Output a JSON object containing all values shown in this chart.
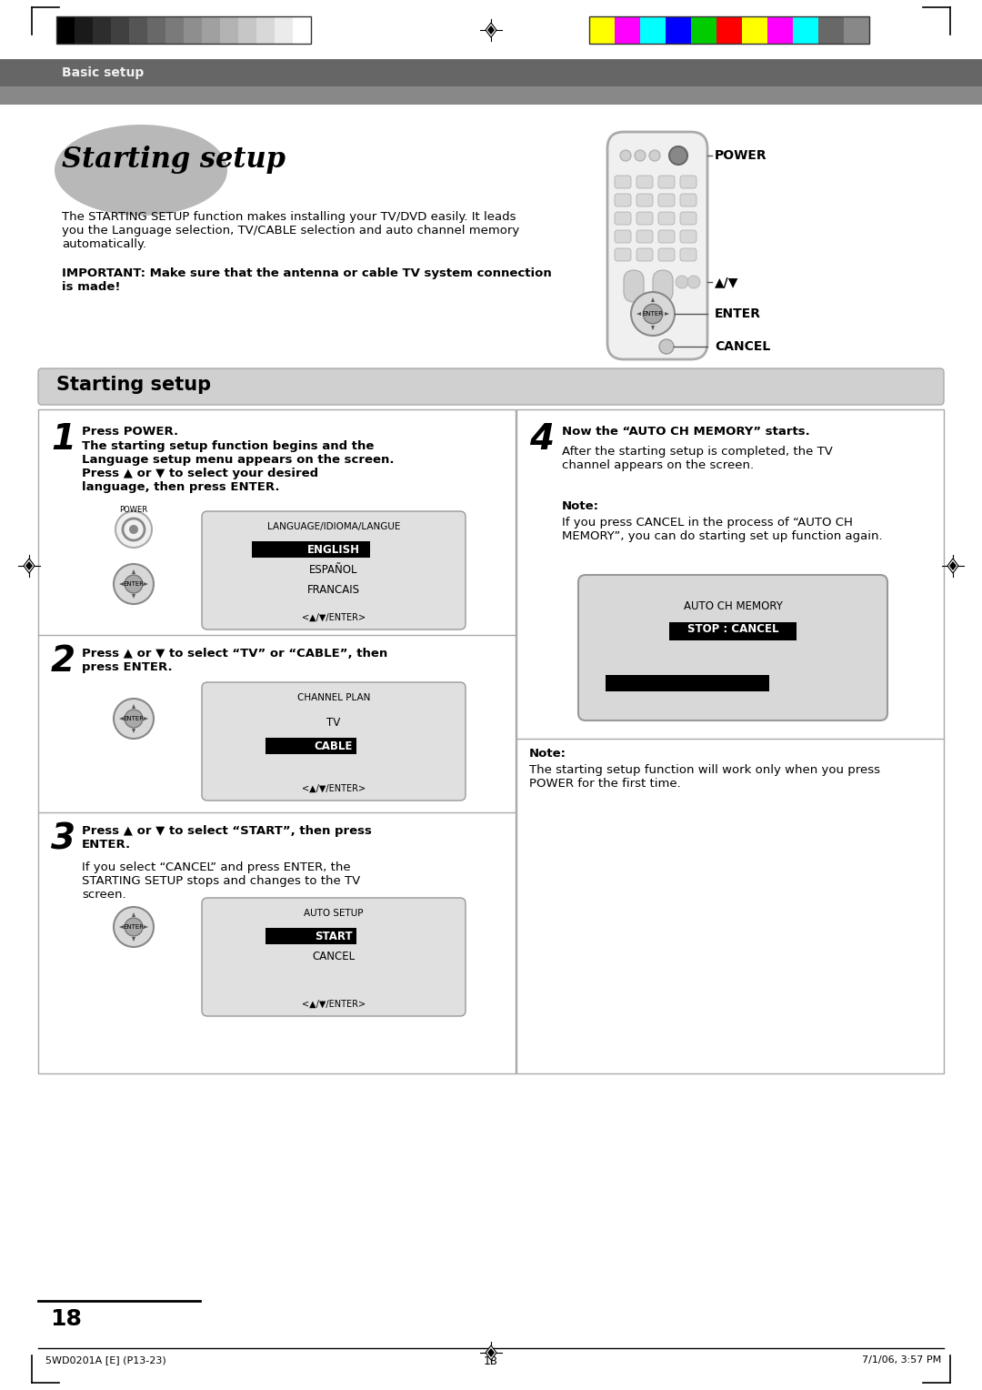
{
  "page_bg": "#ffffff",
  "header_bar_color": "#787878",
  "header_text": "Basic setup",
  "intro_title": "Starting setup",
  "intro_body1": "The STARTING SETUP function makes installing your TV/DVD easily. It leads\nyou the Language selection, TV/CABLE selection and auto channel memory\nautomatically.",
  "intro_bold": "IMPORTANT: Make sure that the antenna or cable TV system connection\nis made!",
  "section_title": "Starting setup",
  "step1_num": "1",
  "step1_title": "Press POWER.",
  "step1_bold": "The starting setup function begins and the\nLanguage setup menu appears on the screen.\nPress ▲ or ▼ to select your desired\nlanguage, then press ENTER.",
  "step1_screen_title": "LANGUAGE/IDIOMA/LANGUE",
  "step1_screen_items": [
    "ENGLISH",
    "ESPAÑOL",
    "FRANCAIS"
  ],
  "step1_screen_selected": 0,
  "step1_screen_nav": "<▲/▼/ENTER>",
  "step2_num": "2",
  "step2_bold": "Press ▲ or ▼ to select “TV” or “CABLE”, then\npress ENTER.",
  "step2_screen_title": "CHANNEL PLAN",
  "step2_screen_items": [
    "TV",
    "CABLE"
  ],
  "step2_screen_selected": 1,
  "step2_screen_nav": "<▲/▼/ENTER>",
  "step3_num": "3",
  "step3_bold": "Press ▲ or ▼ to select “START”, then press\nENTER.",
  "step3_text": "If you select “CANCEL” and press ENTER, the\nSTARTING SETUP stops and changes to the TV\nscreen.",
  "step3_screen_title": "AUTO SETUP",
  "step3_screen_items": [
    "START",
    "CANCEL"
  ],
  "step3_screen_selected": 0,
  "step3_screen_nav": "<▲/▼/ENTER>",
  "step4_num": "4",
  "step4_bold": "Now the “AUTO CH MEMORY” starts.",
  "step4_text": "After the starting setup is completed, the TV\nchannel appears on the screen.",
  "step4_note_title": "Note:",
  "step4_note_text": "If you press CANCEL in the process of “AUTO CH\nMEMORY”, you can do starting set up function again.",
  "step4_screen_title": "AUTO CH MEMORY",
  "step4_screen_selected_text": "STOP : CANCEL",
  "note2_title": "Note:",
  "note2_text": "The starting setup function will work only when you press\nPOWER for the first time.",
  "power_label": "POWER",
  "enter_label": "ENTER",
  "cancel_label": "CANCEL",
  "arrow_label": "▲/▼",
  "page_number": "18",
  "footer_left": "5WD0201A [E] (P13-23)",
  "footer_center": "18",
  "footer_right": "7/1/06, 3:57 PM",
  "colorbar_left": [
    "#000000",
    "#1a1a1a",
    "#2d2d2d",
    "#404040",
    "#555555",
    "#686868",
    "#7a7a7a",
    "#8e8e8e",
    "#a0a0a0",
    "#b3b3b3",
    "#c6c6c6",
    "#d8d8d8",
    "#ebebeb",
    "#ffffff"
  ],
  "colorbar_right": [
    "#ffff00",
    "#ff00ff",
    "#00ffff",
    "#0000ff",
    "#00cc00",
    "#ff0000",
    "#ffff00",
    "#ff00ff",
    "#00ffff",
    "#686868",
    "#888888"
  ]
}
